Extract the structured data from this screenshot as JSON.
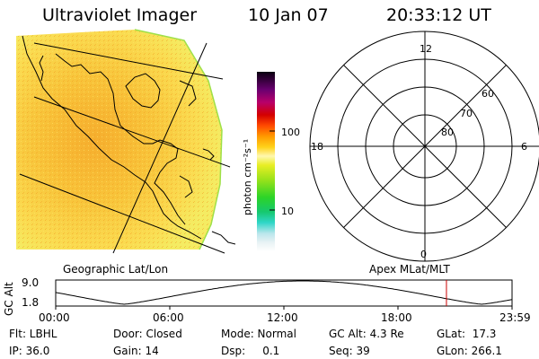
{
  "header": {
    "instrument": "Ultraviolet Imager",
    "date": "10 Jan 07",
    "time": "20:33:12 UT"
  },
  "colorbar": {
    "unit_label": "photon cm⁻²s⁻¹",
    "ticks": [
      "100",
      "10"
    ]
  },
  "polar_plot": {
    "hour_labels": {
      "top": "12",
      "left": "18",
      "right": "6",
      "bottom": "0"
    },
    "lat_labels": [
      "60",
      "70",
      "80"
    ]
  },
  "map_labels": {
    "left": "Geographic Lat/Lon",
    "right": "Apex MLat/MLT"
  },
  "altitude_strip": {
    "axis_label": "GC Alt",
    "y_ticks": [
      "9.0",
      "1.8"
    ],
    "x_ticks": [
      "00:00",
      "06:00",
      "12:00",
      "18:00",
      "23:59"
    ],
    "current_marker_hour": 20.55,
    "marker_color": "#cc0000"
  },
  "status": {
    "flt": "Flt: LBHL",
    "ip": "IP: 36.0",
    "door": "Door: Closed",
    "gain": "Gain: 14",
    "mode": "Mode: Normal",
    "dsp": "Dsp:     0.1",
    "gcalt": "GC Alt: 4.3 Re",
    "seq": "Seq: 39",
    "glat": "GLat:  17.3",
    "glon": "GLon: 266.1"
  }
}
